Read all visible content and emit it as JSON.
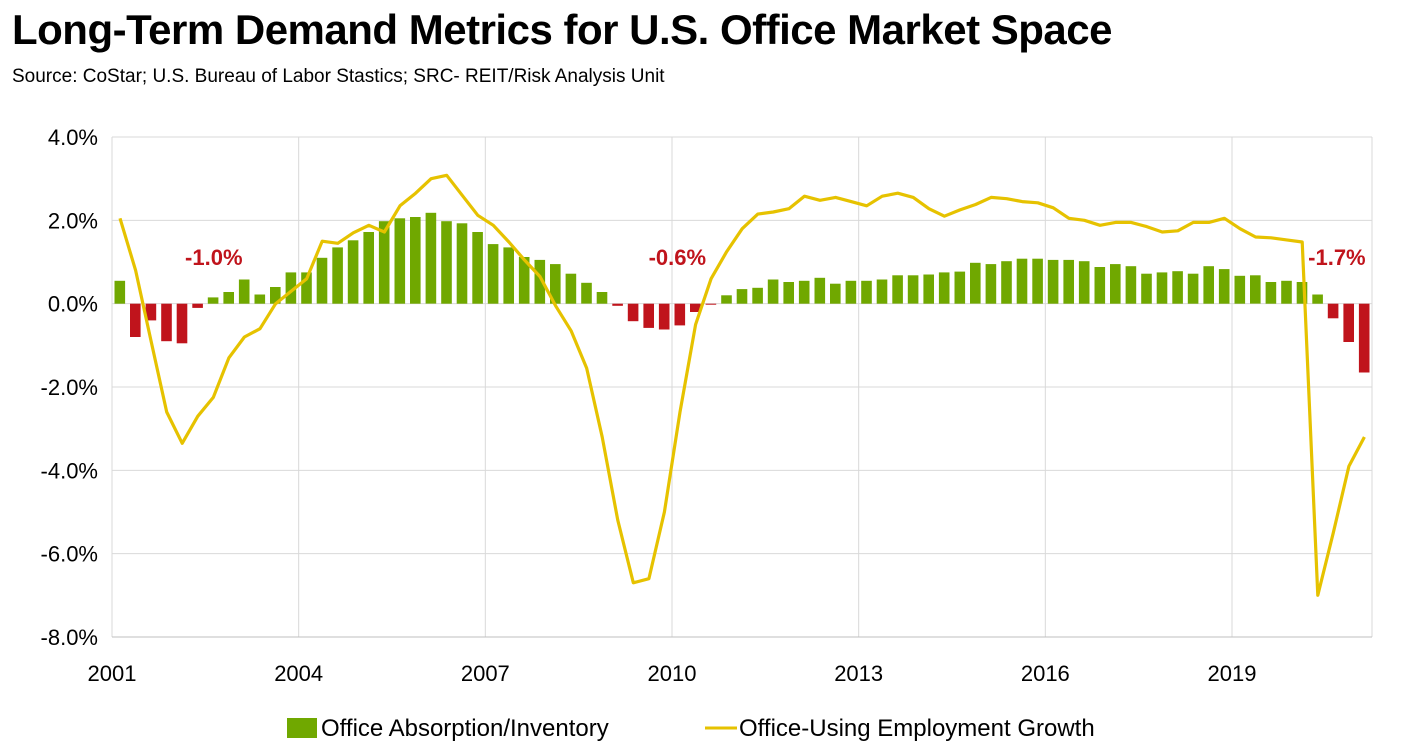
{
  "title": "Long-Term Demand Metrics for U.S. Office Market Space",
  "subtitle": "Source: CoStar; U.S. Bureau of Labor Stastics; SRC- REIT/Risk Analysis Unit",
  "colors": {
    "positive_bar": "#70a800",
    "negative_bar": "#c0141c",
    "line": "#e6c200",
    "annotation": "#c0141c",
    "grid": "#d9d9d9"
  },
  "chart_data": {
    "type": "bar",
    "x_start": 2001.0,
    "x_step": 0.25,
    "xlim": [
      2001.0,
      2021.25
    ],
    "ylim": [
      -8.0,
      4.0
    ],
    "y_ticks": [
      "4.0%",
      "2.0%",
      "0.0%",
      "-2.0%",
      "-4.0%",
      "-6.0%",
      "-8.0%"
    ],
    "y_tick_values": [
      4,
      2,
      0,
      -2,
      -4,
      -6,
      -8
    ],
    "x_ticks": [
      "2001",
      "2004",
      "2007",
      "2010",
      "2013",
      "2016",
      "2019"
    ],
    "x_tick_values": [
      2001,
      2004,
      2007,
      2010,
      2013,
      2016,
      2019
    ],
    "grid": true,
    "legend_position": "bottom",
    "series": [
      {
        "name": "Office Absorption/Inventory",
        "kind": "bar",
        "values": [
          0.55,
          -0.8,
          -0.4,
          -0.9,
          -0.95,
          -0.1,
          0.15,
          0.28,
          0.58,
          0.22,
          0.4,
          0.75,
          0.75,
          1.1,
          1.35,
          1.52,
          1.72,
          1.98,
          2.05,
          2.08,
          2.18,
          1.98,
          1.93,
          1.72,
          1.43,
          1.35,
          1.12,
          1.05,
          0.95,
          0.72,
          0.5,
          0.28,
          -0.05,
          -0.42,
          -0.58,
          -0.62,
          -0.52,
          -0.2,
          -0.02,
          0.2,
          0.35,
          0.38,
          0.58,
          0.52,
          0.55,
          0.62,
          0.48,
          0.55,
          0.55,
          0.58,
          0.68,
          0.68,
          0.7,
          0.75,
          0.77,
          0.98,
          0.95,
          1.02,
          1.08,
          1.08,
          1.05,
          1.05,
          1.02,
          0.88,
          0.95,
          0.9,
          0.72,
          0.75,
          0.78,
          0.72,
          0.9,
          0.83,
          0.67,
          0.68,
          0.52,
          0.55,
          0.52,
          0.22,
          -0.35,
          -0.92,
          -1.65
        ]
      },
      {
        "name": "Office-Using Employment Growth",
        "kind": "line",
        "values": [
          2.05,
          0.8,
          -0.9,
          -2.6,
          -3.35,
          -2.7,
          -2.25,
          -1.3,
          -0.8,
          -0.6,
          0.0,
          0.3,
          0.6,
          1.5,
          1.45,
          1.7,
          1.88,
          1.72,
          2.35,
          2.65,
          3.0,
          3.08,
          2.6,
          2.12,
          1.88,
          1.48,
          1.05,
          0.65,
          -0.05,
          -0.65,
          -1.55,
          -3.2,
          -5.2,
          -6.7,
          -6.6,
          -5.0,
          -2.6,
          -0.5,
          0.6,
          1.25,
          1.8,
          2.15,
          2.2,
          2.28,
          2.58,
          2.48,
          2.55,
          2.45,
          2.35,
          2.58,
          2.65,
          2.55,
          2.28,
          2.1,
          2.25,
          2.38,
          2.55,
          2.52,
          2.45,
          2.42,
          2.3,
          2.05,
          2.0,
          1.88,
          1.95,
          1.95,
          1.85,
          1.72,
          1.75,
          1.95,
          1.95,
          2.05,
          1.8,
          1.6,
          1.58,
          1.53,
          1.48,
          -7.0,
          -5.5,
          -3.9,
          -3.2
        ]
      }
    ],
    "annotations": [
      {
        "text": "-1.0%",
        "x": 2002.25
      },
      {
        "text": "-0.6%",
        "x": 2009.7
      },
      {
        "text": "-1.7%",
        "x": 2020.3
      }
    ]
  }
}
